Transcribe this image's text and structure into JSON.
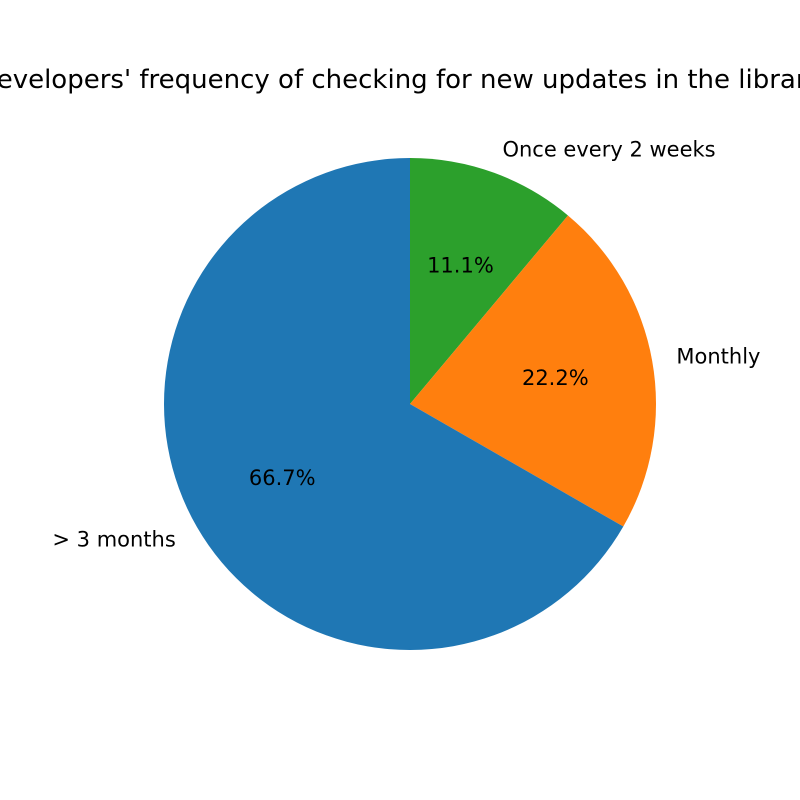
{
  "chart_data": {
    "type": "pie",
    "title": "Developers' frequency of checking for new updates in the libraries",
    "start_angle_deg": 90,
    "direction": "clockwise",
    "slices": [
      {
        "label": "Once every 2 weeks",
        "value": 11.1,
        "pct_label": "11.1%",
        "color": "#2ca02c"
      },
      {
        "label": "Monthly",
        "value": 22.2,
        "pct_label": "22.2%",
        "color": "#ff7f0e"
      },
      {
        "label": "> 3 months",
        "value": 66.7,
        "pct_label": "66.7%",
        "color": "#1f77b4"
      }
    ]
  }
}
